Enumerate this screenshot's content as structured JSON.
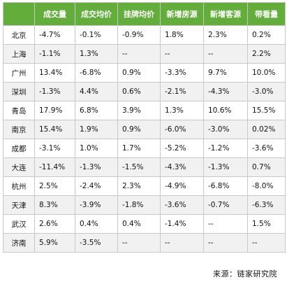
{
  "table": {
    "headers": [
      "",
      "成交量",
      "成交均价",
      "挂牌均价",
      "新增房源",
      "新增客源",
      "带看量"
    ],
    "rows": [
      [
        "北京",
        "-4.7%",
        "-0.1%",
        "-0.9%",
        "1.8%",
        "2.3%",
        "0.2%"
      ],
      [
        "上海",
        "-1.1%",
        "1.3%",
        "--",
        "--",
        "--",
        "2.2%"
      ],
      [
        "广州",
        "13.4%",
        "-6.8%",
        "0.9%",
        "-3.3%",
        "9.7%",
        "10.0%"
      ],
      [
        "深圳",
        "-1.3%",
        "4.4%",
        "0.6%",
        "-2.1%",
        "-4.3%",
        "-3.0%"
      ],
      [
        "青岛",
        "17.9%",
        "6.8%",
        "3.9%",
        "1.3%",
        "10.6%",
        "15.5%"
      ],
      [
        "南京",
        "15.4%",
        "1.9%",
        "0.9%",
        "-6.0%",
        "-3.0%",
        "0.02%"
      ],
      [
        "成都",
        "-3.1%",
        "1.0%",
        "1.7%",
        "-5.2%",
        "-1.2%",
        "-3.6%"
      ],
      [
        "大连",
        "-11.4%",
        "-1.3%",
        "-1.5%",
        "-4.3%",
        "-1.3%",
        "0.7%"
      ],
      [
        "杭州",
        "2.5%",
        "-2.4%",
        "2.3%",
        "-4.9%",
        "-6.8%",
        "-8.0%"
      ],
      [
        "天津",
        "8.3%",
        "-3.9%",
        "-1.8%",
        "-3.6%",
        "-0.7%",
        "-6.3%"
      ],
      [
        "武汉",
        "2.6%",
        "0.4%",
        "0.4%",
        "-1.4%",
        "--",
        "1.5%"
      ],
      [
        "济南",
        "5.9%",
        "-3.5%",
        "--",
        "--",
        "--",
        "--"
      ]
    ]
  },
  "source": "来源：链家研究院",
  "colors": {
    "header_bg": "#63ad3a",
    "header_text": "#ffffff",
    "stripe": "#f1f1f1",
    "border": "#c8c8c8"
  }
}
